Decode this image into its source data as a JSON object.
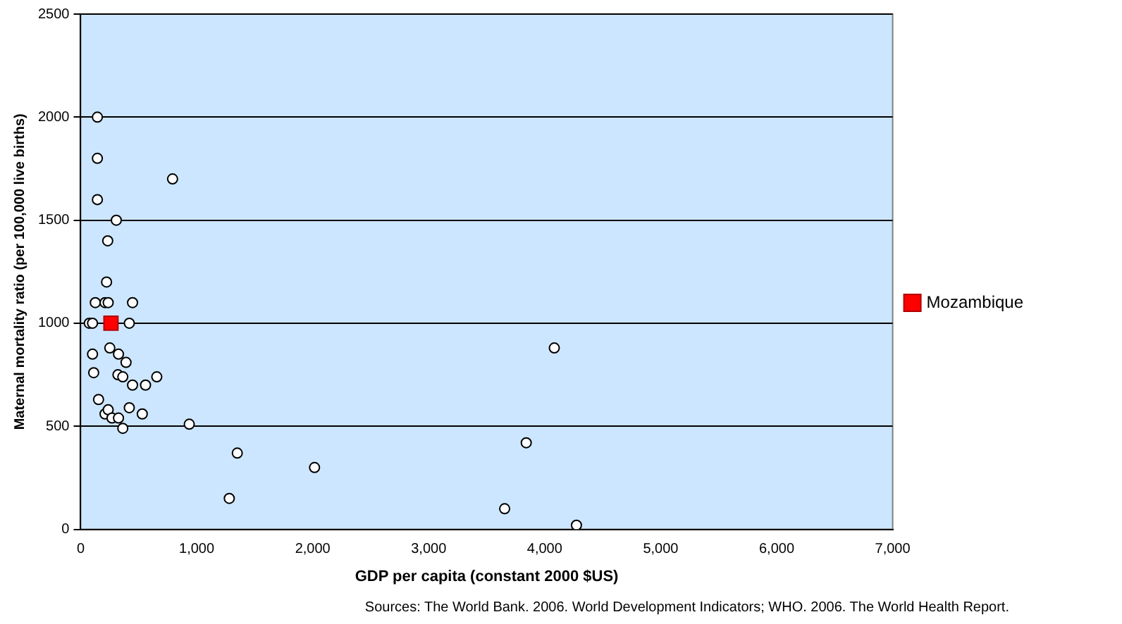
{
  "chart_data": {
    "type": "scatter",
    "xlabel": "GDP per capita (constant 2000 $US)",
    "ylabel": "Maternal mortality ratio (per 100,000 live births)",
    "xlim": [
      0,
      7000
    ],
    "xticks": [
      0,
      {
        "value": 1000,
        "label": "1,000"
      },
      {
        "value": 2000,
        "label": "2,000"
      },
      {
        "value": 3000,
        "label": "3,000"
      },
      {
        "value": 4000,
        "label": "4,000"
      },
      {
        "value": 5000,
        "label": "5,000"
      },
      {
        "value": 6000,
        "label": "6,000"
      },
      {
        "value": 7000,
        "label": "7,000"
      }
    ],
    "ylim": [
      0,
      2500
    ],
    "yticks": [
      0,
      500,
      1000,
      1500,
      2000,
      2500
    ],
    "grid": "y",
    "legend": "right",
    "series": [
      {
        "color": "#ffffff",
        "marker": "circle",
        "x": [
          144,
          144,
          144,
          307,
          792,
          233,
          223,
          126,
          210,
          237,
          447,
          74,
          102,
          419,
          251,
          326,
          102,
          391,
          112,
          321,
          363,
          656,
          447,
          559,
          154,
          419,
          531,
          210,
          237,
          270,
          326,
          363,
          936,
          1350,
          2016,
          1281,
          4083,
          3841,
          3655,
          4274
        ],
        "values": [
          2000,
          1800,
          1600,
          1500,
          1700,
          1400,
          1200,
          1100,
          1100,
          1100,
          1100,
          1000,
          1000,
          1000,
          880,
          850,
          850,
          810,
          760,
          750,
          740,
          740,
          700,
          700,
          630,
          590,
          560,
          560,
          580,
          540,
          540,
          490,
          510,
          370,
          300,
          150,
          880,
          420,
          100,
          20
        ]
      },
      {
        "name": "Mozambique",
        "color": "#ff0000",
        "marker": "square",
        "x": [
          261
        ],
        "values": [
          1000
        ]
      }
    ],
    "annotations": [
      "Sources: The World Bank. 2006. World Development Indicators; WHO. 2006. The World Health Report."
    ]
  }
}
